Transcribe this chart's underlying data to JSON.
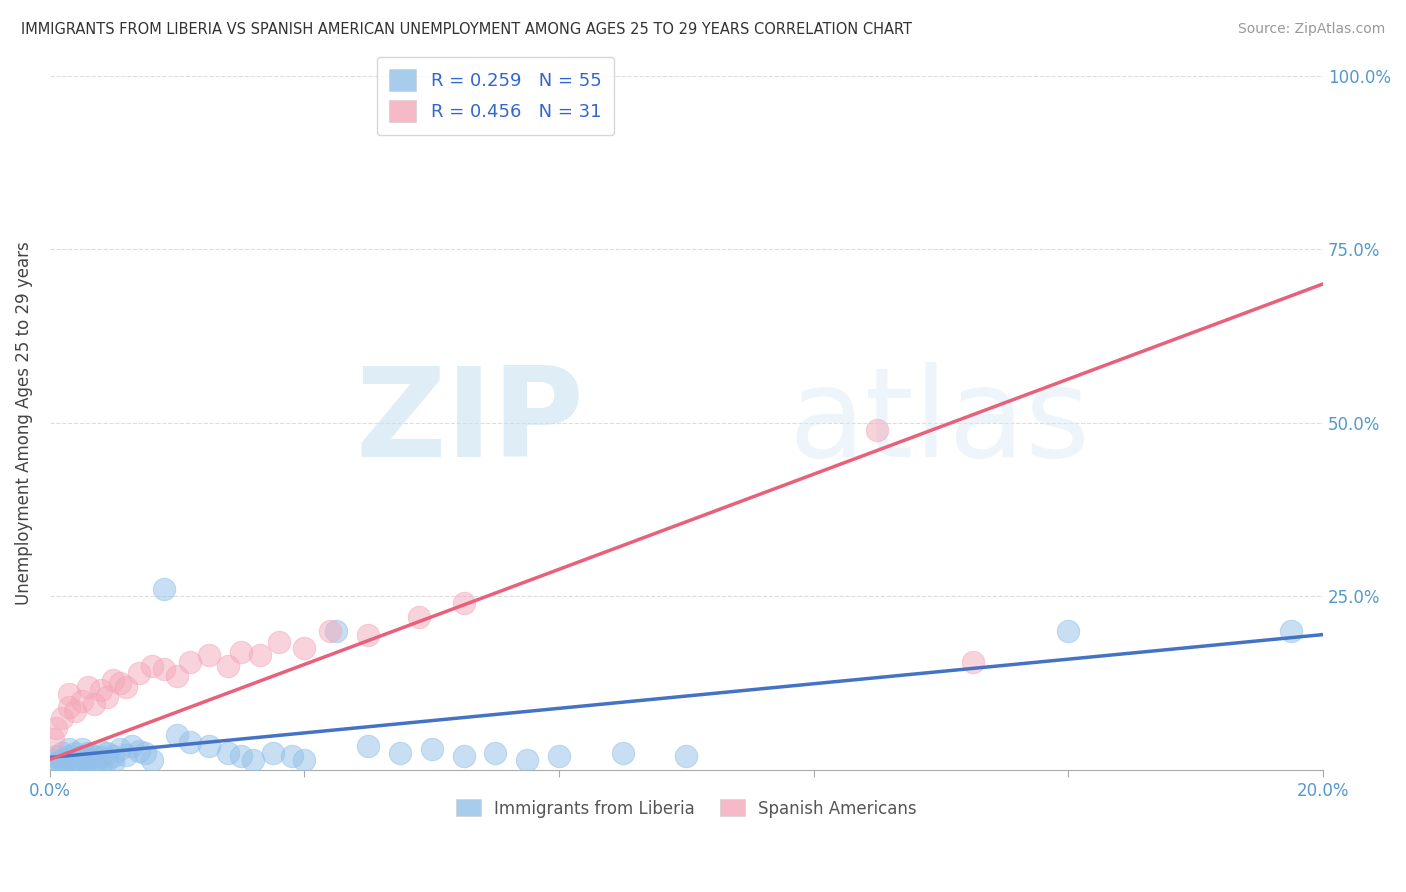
{
  "title": "IMMIGRANTS FROM LIBERIA VS SPANISH AMERICAN UNEMPLOYMENT AMONG AGES 25 TO 29 YEARS CORRELATION CHART",
  "source": "Source: ZipAtlas.com",
  "ylabel": "Unemployment Among Ages 25 to 29 years",
  "xlim": [
    0.0,
    0.2
  ],
  "ylim": [
    0.0,
    1.0
  ],
  "ytick_vals": [
    0.25,
    0.5,
    0.75,
    1.0
  ],
  "ytick_labels": [
    "25.0%",
    "50.0%",
    "75.0%",
    "100.0%"
  ],
  "legend_r1": "R = 0.259",
  "legend_n1": "N = 55",
  "legend_r2": "R = 0.456",
  "legend_n2": "N = 31",
  "blue_color": "#92c0e8",
  "pink_color": "#f4a8ba",
  "blue_line_color": "#4472c4",
  "pink_line_color": "#e8607a",
  "watermark_zip": "ZIP",
  "watermark_atlas": "atlas",
  "blue_x": [
    0.0005,
    0.001,
    0.001,
    0.002,
    0.002,
    0.002,
    0.003,
    0.003,
    0.003,
    0.004,
    0.004,
    0.004,
    0.005,
    0.005,
    0.005,
    0.006,
    0.006,
    0.006,
    0.007,
    0.007,
    0.008,
    0.008,
    0.008,
    0.009,
    0.009,
    0.01,
    0.01,
    0.011,
    0.012,
    0.013,
    0.014,
    0.015,
    0.016,
    0.018,
    0.02,
    0.022,
    0.025,
    0.028,
    0.03,
    0.032,
    0.035,
    0.038,
    0.04,
    0.045,
    0.05,
    0.055,
    0.06,
    0.065,
    0.07,
    0.075,
    0.08,
    0.09,
    0.1,
    0.16,
    0.195
  ],
  "blue_y": [
    0.015,
    0.02,
    0.01,
    0.015,
    0.005,
    0.025,
    0.02,
    0.01,
    0.03,
    0.015,
    0.025,
    0.005,
    0.02,
    0.01,
    0.03,
    0.015,
    0.025,
    0.008,
    0.02,
    0.012,
    0.018,
    0.008,
    0.028,
    0.015,
    0.025,
    0.02,
    0.01,
    0.03,
    0.022,
    0.035,
    0.028,
    0.025,
    0.015,
    0.26,
    0.05,
    0.04,
    0.035,
    0.025,
    0.02,
    0.015,
    0.025,
    0.02,
    0.015,
    0.2,
    0.035,
    0.025,
    0.03,
    0.02,
    0.025,
    0.015,
    0.02,
    0.025,
    0.02,
    0.2,
    0.2
  ],
  "pink_x": [
    0.0005,
    0.001,
    0.002,
    0.003,
    0.003,
    0.004,
    0.005,
    0.006,
    0.007,
    0.008,
    0.009,
    0.01,
    0.011,
    0.012,
    0.014,
    0.016,
    0.018,
    0.02,
    0.022,
    0.025,
    0.028,
    0.03,
    0.033,
    0.036,
    0.04,
    0.044,
    0.05,
    0.058,
    0.065,
    0.13,
    0.145
  ],
  "pink_y": [
    0.045,
    0.06,
    0.075,
    0.09,
    0.11,
    0.085,
    0.1,
    0.12,
    0.095,
    0.115,
    0.105,
    0.13,
    0.125,
    0.12,
    0.14,
    0.15,
    0.145,
    0.135,
    0.155,
    0.165,
    0.15,
    0.17,
    0.165,
    0.185,
    0.175,
    0.2,
    0.195,
    0.22,
    0.24,
    0.49,
    0.155
  ],
  "xtick_positions": [
    0.0,
    0.04,
    0.08,
    0.12,
    0.16,
    0.2
  ]
}
